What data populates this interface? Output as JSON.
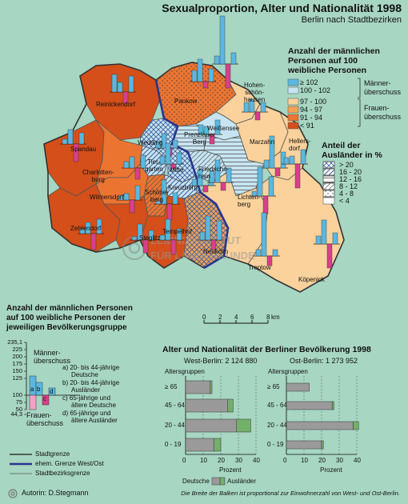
{
  "title": "Sexualproportion, Alter und Nationalität 1998",
  "subtitle": "Berlin nach Stadtbezirken",
  "map_legend": {
    "header": [
      "Anzahl der männlichen",
      "Personen auf 100",
      "weibliche Personen"
    ],
    "classes": [
      {
        "label": "≥ 102",
        "color": "#5ab8e0"
      },
      {
        "label": "100 - 102",
        "color": "#c6e4f2"
      },
      {
        "label": "97 - 100",
        "color": "#fbd29c"
      },
      {
        "label": "94 - 97",
        "color": "#f6a255"
      },
      {
        "label": "91 - 94",
        "color": "#ec7431"
      },
      {
        "label": "< 91",
        "color": "#d44f1a"
      }
    ],
    "surplus_male": [
      "Männer-",
      "überschuss"
    ],
    "surplus_female": [
      "Frauen-",
      "überschuss"
    ]
  },
  "foreigner_legend": {
    "header": [
      "Anteil der",
      "Ausländer in %"
    ],
    "classes": [
      "> 20",
      "16 - 20",
      "12 - 16",
      "8 - 12",
      "4 - 8",
      "< 4"
    ]
  },
  "districts": {
    "reinickendorf": "Reinickendorf",
    "pankow": "Pankow",
    "hohenschoenhausen": [
      "Hohen-",
      "schön-",
      "hausen"
    ],
    "weissensee": "Weißensee",
    "spandau": "Spandau",
    "wedding": "Wedding",
    "prenzlauer_berg": [
      "Prenzlauer",
      "Berg"
    ],
    "marzahn": "Marzahn",
    "hellersdorf": [
      "Hellers-",
      "dorf"
    ],
    "charlottenburg": [
      "Charlotten-",
      "burg"
    ],
    "tiergarten": [
      "Tier-",
      "garten"
    ],
    "mitte": "Mitte",
    "friedrichshain": [
      "Friedrichs-",
      "hain"
    ],
    "wilmersdorf": "Wilmersdorf",
    "schoeneberg": [
      "Schöne-",
      "berg"
    ],
    "kreuzberg": "Kreuzberg",
    "lichtenberg": [
      "Lichten-",
      "berg"
    ],
    "zehlendorf": "Zehlendorf",
    "steglitz": "Steglitz",
    "tempelhof": "Tempelhof",
    "neukoelln": "Neukölln",
    "treptow": "Treptow",
    "koepenick": "Köpenick"
  },
  "watermark": [
    "LEIBNIZ-INSTITUT",
    "FÜR LÄNDERKUNDE"
  ],
  "scale": {
    "ticks": [
      "0",
      "2",
      "4",
      "6",
      "8"
    ],
    "unit": "km"
  },
  "small_legend": {
    "header": [
      "Anzahl der männlichen Personen",
      "auf 100 weibliche Personen der",
      "jeweiligen Bevölkerungsgruppe"
    ],
    "axis_ticks": [
      "235,1",
      "225",
      "200",
      "175",
      "150",
      "125",
      "100",
      "75",
      "50",
      "44,3"
    ],
    "male_label": [
      "Männer-",
      "überschuss"
    ],
    "female_label": [
      "Frauen-",
      "überschuss"
    ],
    "groups": [
      {
        "key": "a)",
        "text": [
          "20- bis 44-jährige",
          "Deutsche"
        ]
      },
      {
        "key": "b)",
        "text": [
          "20- bis 44-jährige",
          "Ausländer"
        ]
      },
      {
        "key": "c)",
        "text": [
          "65-jährige und",
          "ältere Deutsche"
        ]
      },
      {
        "key": "d)",
        "text": [
          "65-jährige und",
          "ältere Ausländer"
        ]
      }
    ],
    "bar_letters": [
      "a",
      "b",
      "c",
      "d"
    ]
  },
  "line_legend": [
    {
      "label": "Stadtgrenze"
    },
    {
      "label": "ehem. Grenze West/Ost"
    },
    {
      "label": "Stadtbezirksgrenze"
    }
  ],
  "author": "Autorin:  D.Stegmann",
  "age_chart_title": "Alter und Nationalität der Berliner Bevölkerung 1998",
  "chart_data": [
    {
      "type": "bar",
      "title": "West-Berlin: 2 124 880",
      "ylabel": "Altersgruppen",
      "xlabel": "Prozent",
      "categories": [
        "≥ 65",
        "45 - 64",
        "20 - 44",
        "0 - 19"
      ],
      "series": [
        {
          "name": "Deutsche",
          "values": [
            14,
            24,
            29,
            16
          ]
        },
        {
          "name": "Ausländer",
          "values": [
            1,
            3,
            8,
            4
          ]
        }
      ],
      "xlim": [
        0,
        40
      ],
      "xticks": [
        "0",
        "10",
        "20",
        "30",
        "40"
      ],
      "grid": true
    },
    {
      "type": "bar",
      "title": "Ost-Berlin: 1 273 952",
      "ylabel": "Altersgruppen",
      "xlabel": "Prozent",
      "categories": [
        "≥ 65",
        "45 - 64",
        "20 - 44",
        "0 - 19"
      ],
      "series": [
        {
          "name": "Deutsche",
          "values": [
            13,
            26,
            38,
            20
          ]
        },
        {
          "name": "Ausländer",
          "values": [
            0,
            1,
            3,
            1
          ]
        }
      ],
      "xlim": [
        0,
        40
      ],
      "xticks": [
        "0",
        "10",
        "20",
        "30",
        "40"
      ],
      "grid": true
    }
  ],
  "age_legend": {
    "german": "Deutsche",
    "foreign": "Ausländer",
    "german_color": "#9a9a9a",
    "foreign_color": "#73b06a"
  },
  "footnote": "Die Breite der Balken ist proportional zur Einwohnerzahl von West- und Ost-Berlin."
}
